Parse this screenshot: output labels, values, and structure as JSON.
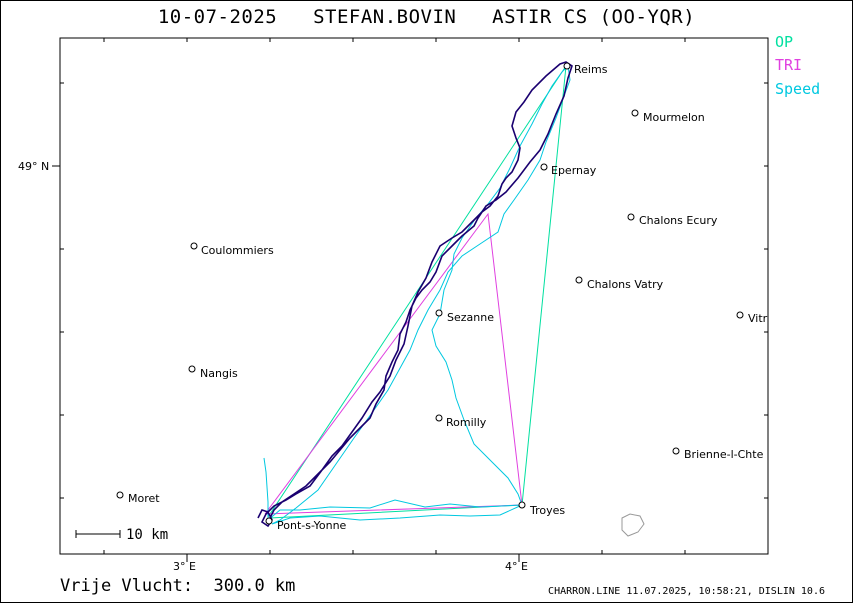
{
  "header": {
    "date": "10-07-2025",
    "pilot": "STEFAN.BOVIN",
    "glider": "ASTIR CS (OO-YQR)"
  },
  "legend": [
    {
      "label": "OP",
      "color": "#00e0a0"
    },
    {
      "label": "TRI",
      "color": "#e040e0"
    },
    {
      "label": "Speed",
      "color": "#00c8e0"
    }
  ],
  "axes": {
    "lat_label": "49° N",
    "lon_labels": [
      "3° E",
      "4° E"
    ]
  },
  "scale": {
    "label": "10 km"
  },
  "footer": {
    "distance_label": "Vrije Vlucht:  300.0 km",
    "info": "CHARRON.LINE 11.07.2025, 10:58:21, DISLIN 10.6"
  },
  "colors": {
    "track": "#1a0070",
    "op": "#00e0a0",
    "tri": "#e040e0",
    "speed": "#00c8e0",
    "city": "#000000",
    "lake": "#999999"
  },
  "cities": [
    {
      "name": "Reims"
    },
    {
      "name": "Mourmelon"
    },
    {
      "name": "Epernay"
    },
    {
      "name": "Chalons Ecury"
    },
    {
      "name": "Coulommiers"
    },
    {
      "name": "Chalons Vatry"
    },
    {
      "name": "Sezanne"
    },
    {
      "name": "Vitr"
    },
    {
      "name": "Nangis"
    },
    {
      "name": "Romilly"
    },
    {
      "name": "Brienne-l-Chte"
    },
    {
      "name": "Moret"
    },
    {
      "name": "Troyes"
    },
    {
      "name": "Pont-s-Yonne"
    }
  ]
}
